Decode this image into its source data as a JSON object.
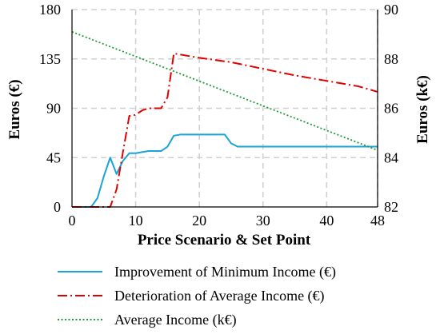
{
  "chart_data": {
    "type": "line",
    "xlabel": "Price Scenario & Set Point",
    "ylabel_left": "Euros (€)",
    "ylabel_right": "Euros (k€)",
    "xlim": [
      0,
      48
    ],
    "ylim_left": [
      0,
      180
    ],
    "ylim_right": [
      82,
      90
    ],
    "x_ticks": [
      0,
      10,
      20,
      30,
      40,
      48
    ],
    "y_ticks_left": [
      0,
      45,
      90,
      135,
      180
    ],
    "y_ticks_right": [
      82,
      84,
      86,
      88,
      90
    ],
    "grid": true,
    "legend_position": "bottom",
    "series": [
      {
        "name": "Improvement of Minimum Income (€)",
        "axis": "left",
        "style": "solid",
        "color": "#1aa3d9",
        "points": [
          [
            0,
            0
          ],
          [
            3,
            0
          ],
          [
            4,
            8
          ],
          [
            5,
            28
          ],
          [
            6,
            45
          ],
          [
            7,
            30
          ],
          [
            8,
            42
          ],
          [
            9,
            49
          ],
          [
            10,
            49
          ],
          [
            11,
            50
          ],
          [
            12,
            51
          ],
          [
            14,
            51
          ],
          [
            15,
            55
          ],
          [
            16,
            65
          ],
          [
            17,
            66
          ],
          [
            24,
            66
          ],
          [
            25,
            58
          ],
          [
            26,
            55
          ],
          [
            48,
            55
          ]
        ]
      },
      {
        "name": "Deterioration of Average Income (€)",
        "axis": "left",
        "style": "dashdot",
        "color": "#e00000",
        "points": [
          [
            0,
            0
          ],
          [
            6,
            0
          ],
          [
            7,
            16
          ],
          [
            8,
            50
          ],
          [
            9,
            83
          ],
          [
            10,
            84
          ],
          [
            11,
            88
          ],
          [
            12,
            90
          ],
          [
            14,
            90
          ],
          [
            15,
            100
          ],
          [
            16,
            140
          ],
          [
            20,
            136
          ],
          [
            25,
            132
          ],
          [
            30,
            126
          ],
          [
            35,
            120
          ],
          [
            40,
            115
          ],
          [
            45,
            110
          ],
          [
            48,
            105
          ]
        ]
      },
      {
        "name": "Average Income (k€)",
        "axis": "right",
        "style": "dotted",
        "color": "#1f9b3a",
        "points": [
          [
            0,
            89.1
          ],
          [
            48,
            84.3
          ]
        ]
      }
    ]
  }
}
